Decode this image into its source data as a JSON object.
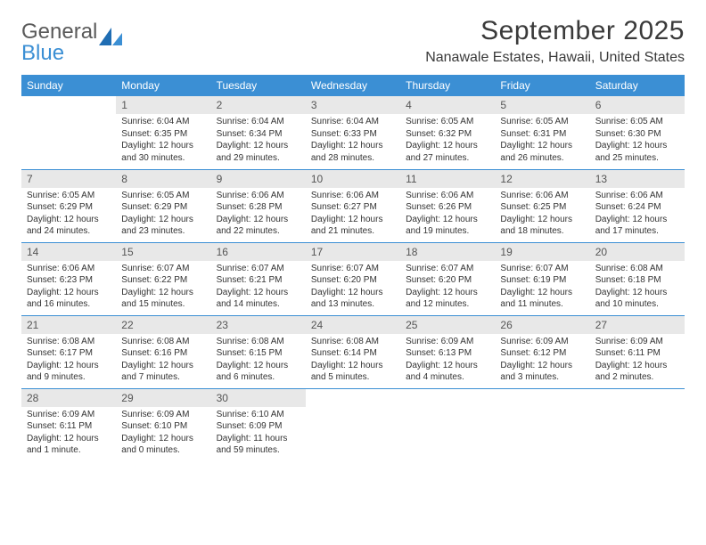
{
  "logo": {
    "word1": "General",
    "word2": "Blue"
  },
  "title": "September 2025",
  "location": "Nanawale Estates, Hawaii, United States",
  "colors": {
    "header_bg": "#3b8fd4",
    "header_text": "#ffffff",
    "daynum_bg": "#e8e8e8",
    "row_border": "#3b8fd4",
    "logo_gray": "#5a5a5a",
    "logo_blue": "#3b8fd4",
    "body_text": "#333333"
  },
  "typography": {
    "title_fontsize": 30,
    "location_fontsize": 16,
    "dayheader_fontsize": 12,
    "daynum_fontsize": 12,
    "cell_fontsize": 10
  },
  "day_headers": [
    "Sunday",
    "Monday",
    "Tuesday",
    "Wednesday",
    "Thursday",
    "Friday",
    "Saturday"
  ],
  "weeks": [
    [
      {
        "empty": true
      },
      {
        "num": "1",
        "sunrise": "Sunrise: 6:04 AM",
        "sunset": "Sunset: 6:35 PM",
        "daylight": "Daylight: 12 hours and 30 minutes."
      },
      {
        "num": "2",
        "sunrise": "Sunrise: 6:04 AM",
        "sunset": "Sunset: 6:34 PM",
        "daylight": "Daylight: 12 hours and 29 minutes."
      },
      {
        "num": "3",
        "sunrise": "Sunrise: 6:04 AM",
        "sunset": "Sunset: 6:33 PM",
        "daylight": "Daylight: 12 hours and 28 minutes."
      },
      {
        "num": "4",
        "sunrise": "Sunrise: 6:05 AM",
        "sunset": "Sunset: 6:32 PM",
        "daylight": "Daylight: 12 hours and 27 minutes."
      },
      {
        "num": "5",
        "sunrise": "Sunrise: 6:05 AM",
        "sunset": "Sunset: 6:31 PM",
        "daylight": "Daylight: 12 hours and 26 minutes."
      },
      {
        "num": "6",
        "sunrise": "Sunrise: 6:05 AM",
        "sunset": "Sunset: 6:30 PM",
        "daylight": "Daylight: 12 hours and 25 minutes."
      }
    ],
    [
      {
        "num": "7",
        "sunrise": "Sunrise: 6:05 AM",
        "sunset": "Sunset: 6:29 PM",
        "daylight": "Daylight: 12 hours and 24 minutes."
      },
      {
        "num": "8",
        "sunrise": "Sunrise: 6:05 AM",
        "sunset": "Sunset: 6:29 PM",
        "daylight": "Daylight: 12 hours and 23 minutes."
      },
      {
        "num": "9",
        "sunrise": "Sunrise: 6:06 AM",
        "sunset": "Sunset: 6:28 PM",
        "daylight": "Daylight: 12 hours and 22 minutes."
      },
      {
        "num": "10",
        "sunrise": "Sunrise: 6:06 AM",
        "sunset": "Sunset: 6:27 PM",
        "daylight": "Daylight: 12 hours and 21 minutes."
      },
      {
        "num": "11",
        "sunrise": "Sunrise: 6:06 AM",
        "sunset": "Sunset: 6:26 PM",
        "daylight": "Daylight: 12 hours and 19 minutes."
      },
      {
        "num": "12",
        "sunrise": "Sunrise: 6:06 AM",
        "sunset": "Sunset: 6:25 PM",
        "daylight": "Daylight: 12 hours and 18 minutes."
      },
      {
        "num": "13",
        "sunrise": "Sunrise: 6:06 AM",
        "sunset": "Sunset: 6:24 PM",
        "daylight": "Daylight: 12 hours and 17 minutes."
      }
    ],
    [
      {
        "num": "14",
        "sunrise": "Sunrise: 6:06 AM",
        "sunset": "Sunset: 6:23 PM",
        "daylight": "Daylight: 12 hours and 16 minutes."
      },
      {
        "num": "15",
        "sunrise": "Sunrise: 6:07 AM",
        "sunset": "Sunset: 6:22 PM",
        "daylight": "Daylight: 12 hours and 15 minutes."
      },
      {
        "num": "16",
        "sunrise": "Sunrise: 6:07 AM",
        "sunset": "Sunset: 6:21 PM",
        "daylight": "Daylight: 12 hours and 14 minutes."
      },
      {
        "num": "17",
        "sunrise": "Sunrise: 6:07 AM",
        "sunset": "Sunset: 6:20 PM",
        "daylight": "Daylight: 12 hours and 13 minutes."
      },
      {
        "num": "18",
        "sunrise": "Sunrise: 6:07 AM",
        "sunset": "Sunset: 6:20 PM",
        "daylight": "Daylight: 12 hours and 12 minutes."
      },
      {
        "num": "19",
        "sunrise": "Sunrise: 6:07 AM",
        "sunset": "Sunset: 6:19 PM",
        "daylight": "Daylight: 12 hours and 11 minutes."
      },
      {
        "num": "20",
        "sunrise": "Sunrise: 6:08 AM",
        "sunset": "Sunset: 6:18 PM",
        "daylight": "Daylight: 12 hours and 10 minutes."
      }
    ],
    [
      {
        "num": "21",
        "sunrise": "Sunrise: 6:08 AM",
        "sunset": "Sunset: 6:17 PM",
        "daylight": "Daylight: 12 hours and 9 minutes."
      },
      {
        "num": "22",
        "sunrise": "Sunrise: 6:08 AM",
        "sunset": "Sunset: 6:16 PM",
        "daylight": "Daylight: 12 hours and 7 minutes."
      },
      {
        "num": "23",
        "sunrise": "Sunrise: 6:08 AM",
        "sunset": "Sunset: 6:15 PM",
        "daylight": "Daylight: 12 hours and 6 minutes."
      },
      {
        "num": "24",
        "sunrise": "Sunrise: 6:08 AM",
        "sunset": "Sunset: 6:14 PM",
        "daylight": "Daylight: 12 hours and 5 minutes."
      },
      {
        "num": "25",
        "sunrise": "Sunrise: 6:09 AM",
        "sunset": "Sunset: 6:13 PM",
        "daylight": "Daylight: 12 hours and 4 minutes."
      },
      {
        "num": "26",
        "sunrise": "Sunrise: 6:09 AM",
        "sunset": "Sunset: 6:12 PM",
        "daylight": "Daylight: 12 hours and 3 minutes."
      },
      {
        "num": "27",
        "sunrise": "Sunrise: 6:09 AM",
        "sunset": "Sunset: 6:11 PM",
        "daylight": "Daylight: 12 hours and 2 minutes."
      }
    ],
    [
      {
        "num": "28",
        "sunrise": "Sunrise: 6:09 AM",
        "sunset": "Sunset: 6:11 PM",
        "daylight": "Daylight: 12 hours and 1 minute."
      },
      {
        "num": "29",
        "sunrise": "Sunrise: 6:09 AM",
        "sunset": "Sunset: 6:10 PM",
        "daylight": "Daylight: 12 hours and 0 minutes."
      },
      {
        "num": "30",
        "sunrise": "Sunrise: 6:10 AM",
        "sunset": "Sunset: 6:09 PM",
        "daylight": "Daylight: 11 hours and 59 minutes."
      },
      {
        "empty": true
      },
      {
        "empty": true
      },
      {
        "empty": true
      },
      {
        "empty": true
      }
    ]
  ]
}
